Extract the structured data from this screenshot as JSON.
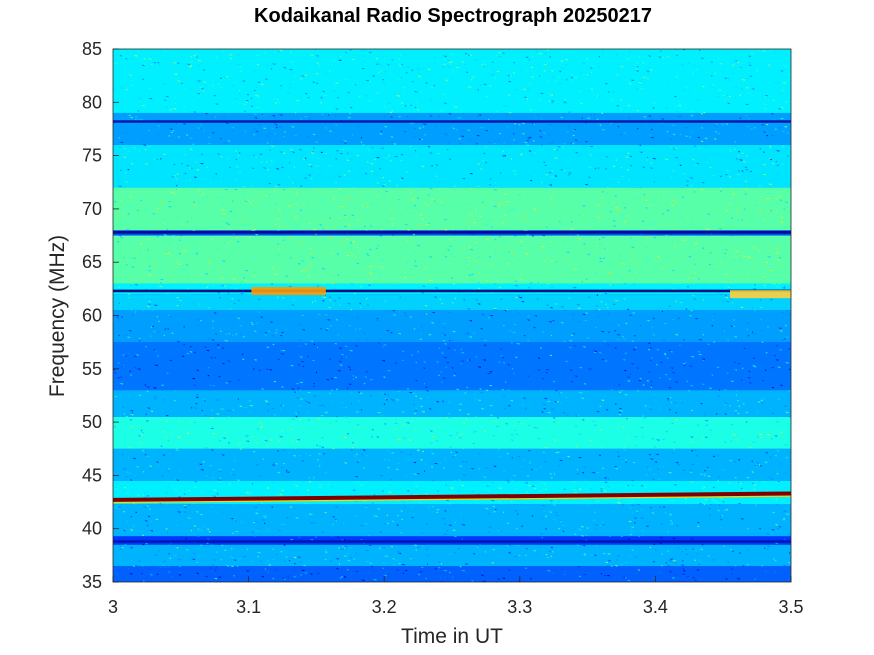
{
  "chart_data": {
    "type": "heatmap",
    "title": "Kodaikanal Radio Spectrograph  20250217",
    "xlabel": "Time in UT",
    "ylabel": "Frequency (MHz)",
    "xlim": [
      3,
      3.5
    ],
    "ylim": [
      35,
      85
    ],
    "xticks": [
      3,
      3.1,
      3.2,
      3.3,
      3.4,
      3.5
    ],
    "xtick_labels": [
      "3",
      "3.1",
      "3.2",
      "3.3",
      "3.4",
      "3.5"
    ],
    "yticks": [
      35,
      40,
      45,
      50,
      55,
      60,
      65,
      70,
      75,
      80,
      85
    ],
    "ytick_labels": [
      "35",
      "40",
      "45",
      "50",
      "55",
      "60",
      "65",
      "70",
      "75",
      "80",
      "85"
    ],
    "colormap": "jet",
    "background_colors": [
      "#0000bf",
      "#0040ff",
      "#0080ff",
      "#00c0ff",
      "#40ffbf",
      "#bfff40"
    ],
    "frequency_bands": [
      {
        "f_min": 35,
        "f_max": 36.5,
        "level": 0.22
      },
      {
        "f_min": 36.5,
        "f_max": 38.5,
        "level": 0.3
      },
      {
        "f_min": 38.5,
        "f_max": 39.3,
        "level": 0.18
      },
      {
        "f_min": 39.3,
        "f_max": 42.3,
        "level": 0.3
      },
      {
        "f_min": 42.3,
        "f_max": 44.5,
        "level": 0.36
      },
      {
        "f_min": 44.5,
        "f_max": 47.5,
        "level": 0.3
      },
      {
        "f_min": 47.5,
        "f_max": 50.5,
        "level": 0.4
      },
      {
        "f_min": 50.5,
        "f_max": 53,
        "level": 0.3
      },
      {
        "f_min": 53,
        "f_max": 57.5,
        "level": 0.24
      },
      {
        "f_min": 57.5,
        "f_max": 60.5,
        "level": 0.28
      },
      {
        "f_min": 60.5,
        "f_max": 62,
        "level": 0.33
      },
      {
        "f_min": 62,
        "f_max": 63,
        "level": 0.36
      },
      {
        "f_min": 63,
        "f_max": 67.5,
        "level": 0.46
      },
      {
        "f_min": 68,
        "f_max": 72,
        "level": 0.46
      },
      {
        "f_min": 72,
        "f_max": 76,
        "level": 0.35
      },
      {
        "f_min": 76,
        "f_max": 79,
        "level": 0.28
      },
      {
        "f_min": 79,
        "f_max": 85,
        "level": 0.36
      }
    ],
    "dark_lines": [
      {
        "freq": 67.8,
        "color": "#000c8a"
      },
      {
        "freq": 62.3,
        "color": "#000c8a"
      },
      {
        "freq": 78.2,
        "color": "#0018b0"
      },
      {
        "freq": 38.8,
        "color": "#0018b0"
      }
    ],
    "interference_line": {
      "freq_start": 42.7,
      "freq_end": 43.3,
      "color": "#800000",
      "edge_color": "#ffd400"
    },
    "bursts": [
      {
        "t_start": 3.102,
        "t_end": 3.157,
        "freq": 62.3,
        "color": "#ff9a00"
      },
      {
        "t_start": 3.455,
        "t_end": 3.5,
        "freq": 62.0,
        "color": "#ffcf3a"
      }
    ]
  }
}
